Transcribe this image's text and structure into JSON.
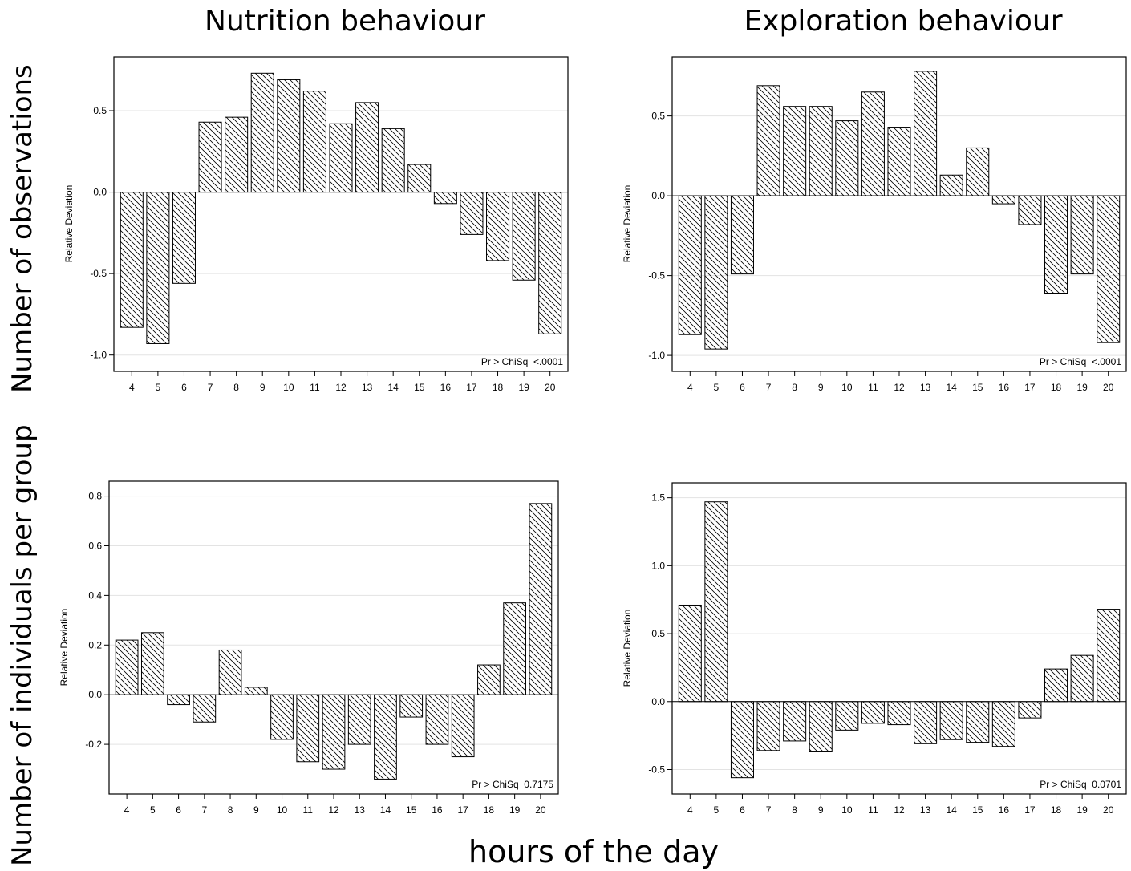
{
  "figure": {
    "col_titles": [
      "Nutrition behaviour",
      "Exploration behaviour"
    ],
    "row_labels": [
      "Number of observations",
      "Number of individuals per group"
    ],
    "x_title": "hours of the day"
  },
  "chart_data": [
    {
      "type": "bar",
      "panel": "top-left",
      "categories": [
        "4",
        "5",
        "6",
        "7",
        "8",
        "9",
        "10",
        "11",
        "12",
        "13",
        "14",
        "15",
        "16",
        "17",
        "18",
        "19",
        "20"
      ],
      "values": [
        -0.83,
        -0.93,
        -0.56,
        0.43,
        0.46,
        0.73,
        0.69,
        0.62,
        0.42,
        0.55,
        0.39,
        0.17,
        -0.07,
        -0.26,
        -0.42,
        -0.54,
        -0.87
      ],
      "ylabel": "Relative Deviation",
      "yticks": [
        -1.0,
        -0.5,
        0.0,
        0.5
      ],
      "ytick_labels": [
        "-1.0",
        "-0.5",
        "0.0",
        "0.5"
      ],
      "ylim": [
        -1.1,
        0.83
      ],
      "annotation": "Pr > ChiSq  <.0001",
      "pattern": "diagonal-hatch"
    },
    {
      "type": "bar",
      "panel": "top-right",
      "categories": [
        "4",
        "5",
        "6",
        "7",
        "8",
        "9",
        "10",
        "11",
        "12",
        "13",
        "14",
        "15",
        "16",
        "17",
        "18",
        "19",
        "20"
      ],
      "values": [
        -0.87,
        -0.96,
        -0.49,
        0.69,
        0.56,
        0.56,
        0.47,
        0.65,
        0.43,
        0.78,
        0.13,
        0.3,
        -0.05,
        -0.18,
        -0.61,
        -0.49,
        -0.92
      ],
      "ylabel": "Relative Deviation",
      "yticks": [
        -1.0,
        -0.5,
        0.0,
        0.5
      ],
      "ytick_labels": [
        "-1.0",
        "-0.5",
        "0.0",
        "0.5"
      ],
      "ylim": [
        -1.1,
        0.87
      ],
      "annotation": "Pr > ChiSq  <.0001",
      "pattern": "diagonal-hatch"
    },
    {
      "type": "bar",
      "panel": "bottom-left",
      "categories": [
        "4",
        "5",
        "6",
        "7",
        "8",
        "9",
        "10",
        "11",
        "12",
        "13",
        "14",
        "15",
        "16",
        "17",
        "18",
        "19",
        "20"
      ],
      "values": [
        0.22,
        0.25,
        -0.04,
        -0.11,
        0.18,
        0.03,
        -0.18,
        -0.27,
        -0.3,
        -0.2,
        -0.34,
        -0.09,
        -0.2,
        -0.25,
        0.12,
        0.37,
        0.77
      ],
      "ylabel": "Relative Deviation",
      "yticks": [
        -0.2,
        0.0,
        0.2,
        0.4,
        0.6,
        0.8
      ],
      "ytick_labels": [
        "-0.2",
        "0.0",
        "0.2",
        "0.4",
        "0.6",
        "0.8"
      ],
      "ylim": [
        -0.4,
        0.86
      ],
      "annotation": "Pr > ChiSq  0.7175",
      "pattern": "diagonal-hatch"
    },
    {
      "type": "bar",
      "panel": "bottom-right",
      "categories": [
        "4",
        "5",
        "6",
        "7",
        "8",
        "9",
        "10",
        "11",
        "12",
        "13",
        "14",
        "15",
        "16",
        "17",
        "18",
        "19",
        "20"
      ],
      "values": [
        0.71,
        1.47,
        -0.56,
        -0.36,
        -0.29,
        -0.37,
        -0.21,
        -0.16,
        -0.17,
        -0.31,
        -0.28,
        -0.3,
        -0.33,
        -0.12,
        0.24,
        0.34,
        0.68
      ],
      "ylabel": "Relative Deviation",
      "yticks": [
        -0.5,
        0.0,
        0.5,
        1.0,
        1.5
      ],
      "ytick_labels": [
        "-0.5",
        "0.0",
        "0.5",
        "1.0",
        "1.5"
      ],
      "ylim": [
        -0.68,
        1.61
      ],
      "annotation": "Pr > ChiSq  0.0701",
      "pattern": "diagonal-hatch"
    }
  ]
}
